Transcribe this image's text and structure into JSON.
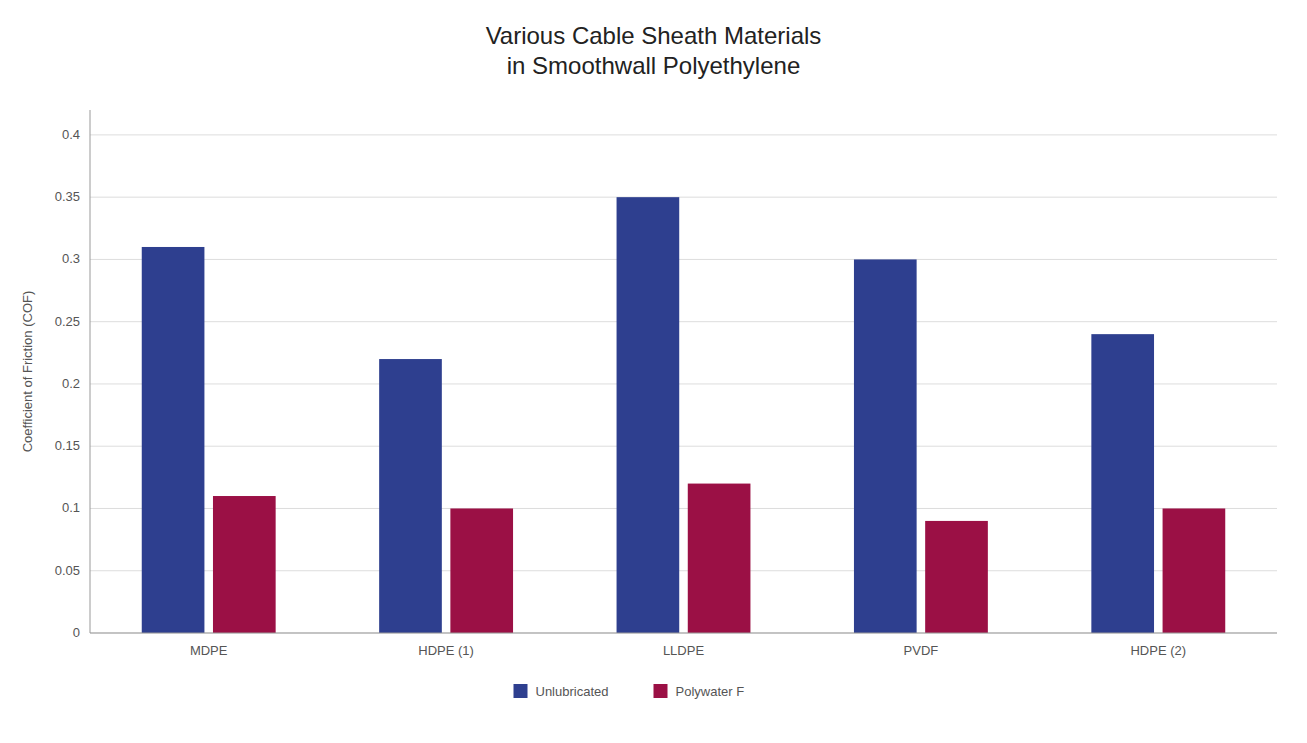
{
  "chart_data": {
    "type": "bar",
    "title": "Various Cable Sheath Materials\nin Smoothwall Polyethylene",
    "y_label": "Coefficient of Friction (COF)",
    "categories": [
      "MDPE",
      "HDPE (1)",
      "LLDPE",
      "PVDF",
      "HDPE (2)"
    ],
    "series": [
      {
        "name": "Unlubricated",
        "color": "#2E3F8F",
        "values": [
          0.31,
          0.22,
          0.35,
          0.3,
          0.24
        ]
      },
      {
        "name": "Polywater F",
        "color": "#9B1045",
        "values": [
          0.11,
          0.1,
          0.12,
          0.09,
          0.1
        ]
      }
    ],
    "ylim": [
      0,
      0.42
    ],
    "yticks": [
      0,
      0.05,
      0.1,
      0.15,
      0.2,
      0.25,
      0.3,
      0.35,
      0.4
    ],
    "grid": true,
    "legend": "bottom"
  }
}
